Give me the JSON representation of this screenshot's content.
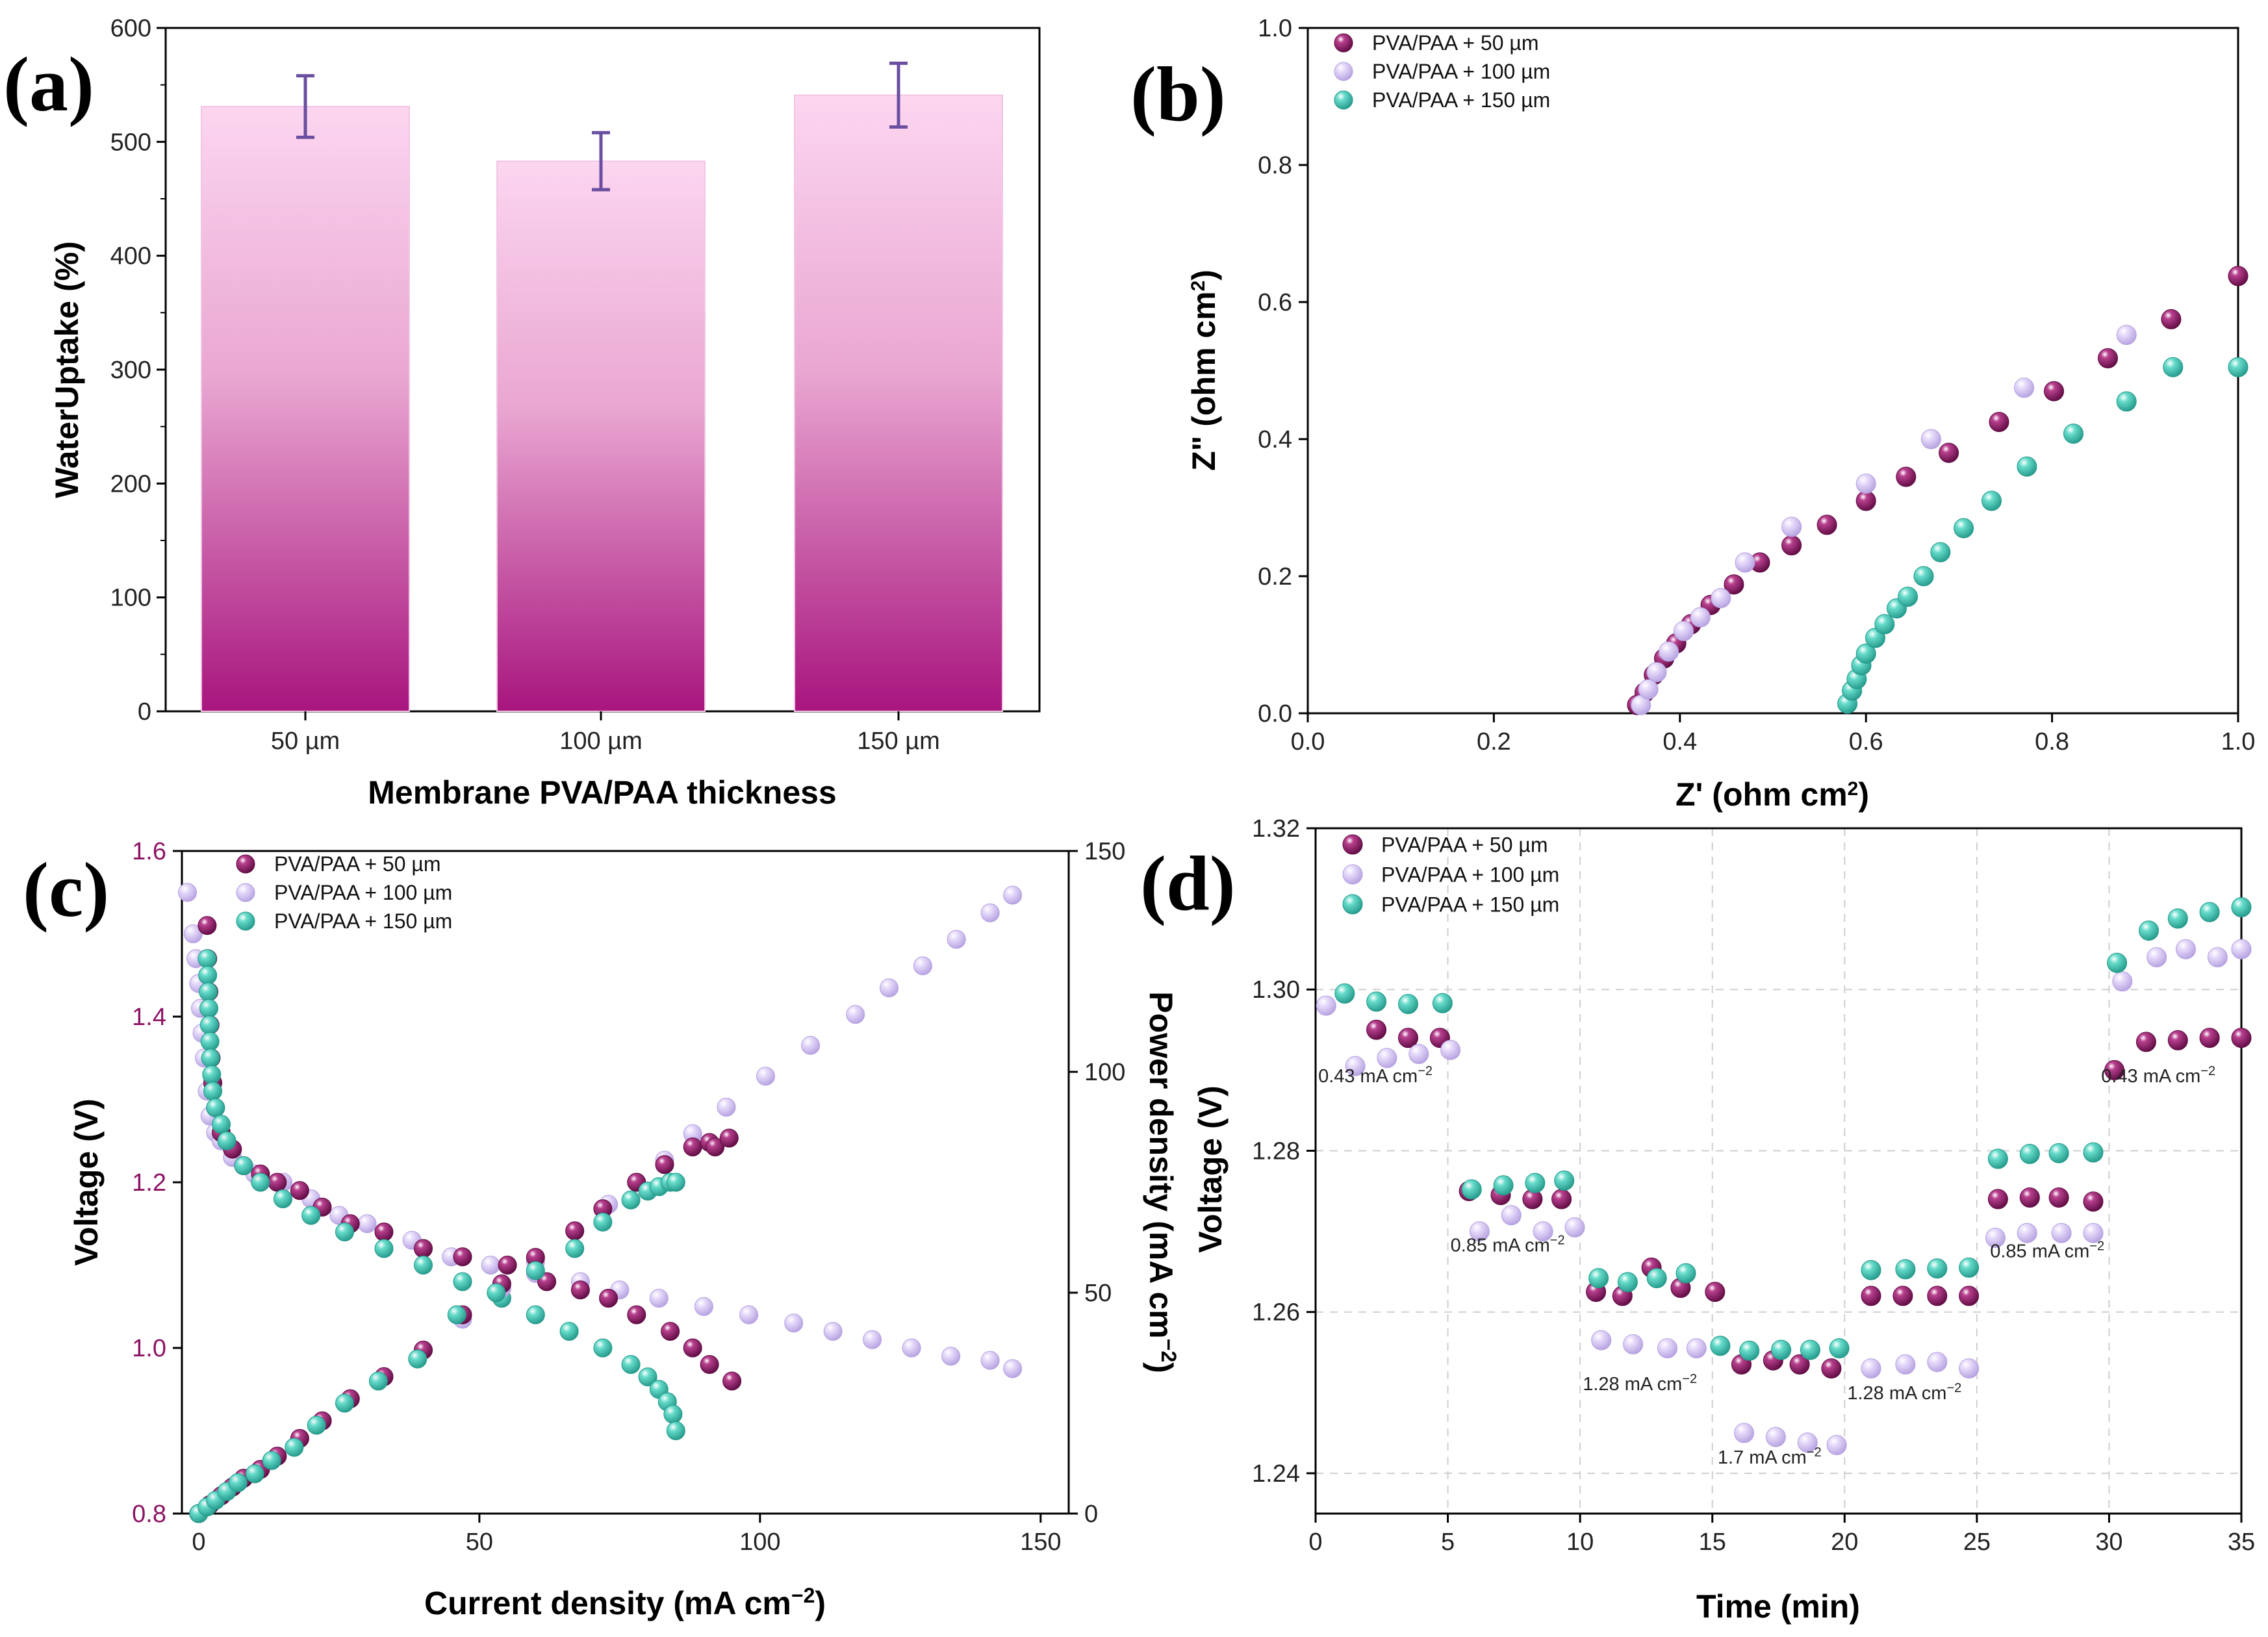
{
  "colors": {
    "s50": "#8c1464",
    "s100": "#d4c2f2",
    "s150": "#48c6b4",
    "bar_top": "#fcd6f0",
    "bar_bottom": "#a8157e",
    "error_bar": "#6a4ea0",
    "voltage_axis": "#8c1464"
  },
  "chart_data": [
    {
      "panel": "(a)",
      "type": "bar",
      "categories": [
        "50 µm",
        "100 µm",
        "150 µm"
      ],
      "values": [
        531,
        483,
        541
      ],
      "errors": [
        27,
        25,
        28
      ],
      "xlabel": "Membrane PVA/PAA thickness",
      "ylabel": "WaterUptake (%)",
      "ylim": [
        0,
        600
      ],
      "yticks": [
        "0",
        "100",
        "200",
        "300",
        "400",
        "500",
        "600"
      ]
    },
    {
      "panel": "(b)",
      "type": "scatter",
      "xlabel": "Z' (ohm cm",
      "xlabel_sup": "2",
      "xlabel_end": ")",
      "ylabel": "Z\" (ohm cm",
      "ylabel_sup": "2",
      "ylabel_end": ")",
      "xlim": [
        0,
        1
      ],
      "ylim": [
        0,
        1
      ],
      "xticks": [
        "0.0",
        "0.2",
        "0.4",
        "0.6",
        "0.8",
        "1.0"
      ],
      "yticks": [
        "0.0",
        "0.2",
        "0.4",
        "0.6",
        "0.8",
        "1.0"
      ],
      "legend": [
        "PVA/PAA + 50 µm",
        "PVA/PAA + 100 µm",
        "PVA/PAA + 150 µm"
      ],
      "series": [
        {
          "name": "PVA/PAA + 50 µm",
          "x": [
            0.354,
            0.362,
            0.372,
            0.383,
            0.396,
            0.412,
            0.433,
            0.458,
            0.486,
            0.52,
            0.558,
            0.6,
            0.643,
            0.689,
            0.743,
            0.802,
            0.86,
            0.928,
            1.0
          ],
          "y": [
            0.012,
            0.03,
            0.056,
            0.08,
            0.102,
            0.13,
            0.158,
            0.188,
            0.22,
            0.245,
            0.275,
            0.31,
            0.345,
            0.38,
            0.425,
            0.47,
            0.518,
            0.575,
            0.638
          ]
        },
        {
          "name": "PVA/PAA + 100 µm",
          "x": [
            0.358,
            0.366,
            0.375,
            0.388,
            0.404,
            0.422,
            0.444,
            0.47,
            0.52,
            0.6,
            0.67,
            0.77,
            0.88
          ],
          "y": [
            0.012,
            0.035,
            0.06,
            0.09,
            0.12,
            0.14,
            0.168,
            0.22,
            0.272,
            0.335,
            0.4,
            0.475,
            0.552
          ]
        },
        {
          "name": "PVA/PAA + 150 µm",
          "x": [
            0.58,
            0.585,
            0.59,
            0.595,
            0.6,
            0.61,
            0.62,
            0.633,
            0.645,
            0.662,
            0.68,
            0.705,
            0.735,
            0.773,
            0.823,
            0.88,
            0.93,
            1.0
          ],
          "y": [
            0.014,
            0.033,
            0.05,
            0.07,
            0.087,
            0.11,
            0.13,
            0.153,
            0.17,
            0.2,
            0.235,
            0.27,
            0.31,
            0.36,
            0.408,
            0.455,
            0.505,
            0.505
          ]
        }
      ]
    },
    {
      "panel": "(c)",
      "type": "scatter",
      "xlabel": "Current density (mA cm",
      "xlabel_sup": "−2",
      "xlabel_end": ")",
      "ylabel": "Voltage (V)",
      "y2label": "Power density (mA cm",
      "y2label_sup": "−2",
      "y2label_end": ")",
      "xlim": [
        -3,
        155
      ],
      "ylim": [
        0.8,
        1.6
      ],
      "y2lim": [
        0,
        150
      ],
      "xticks": [
        "0",
        "50",
        "100",
        "150"
      ],
      "yticks": [
        "0.8",
        "1.0",
        "1.2",
        "1.4",
        "1.6"
      ],
      "y2ticks": [
        "0",
        "50",
        "100",
        "150"
      ],
      "legend": [
        "PVA/PAA + 50 µm",
        "PVA/PAA + 100 µm",
        "PVA/PAA + 150 µm"
      ],
      "polarization": [
        {
          "name": "PVA/PAA + 50 µm",
          "x": [
            1.5,
            1.6,
            1.8,
            2,
            2.2,
            2.5,
            3,
            4,
            6,
            8,
            11,
            14,
            18,
            22,
            27,
            33,
            40,
            47,
            55,
            62,
            68,
            73,
            78,
            84,
            88,
            91,
            95
          ],
          "y": [
            1.51,
            1.47,
            1.43,
            1.39,
            1.35,
            1.32,
            1.29,
            1.26,
            1.24,
            1.22,
            1.21,
            1.2,
            1.19,
            1.17,
            1.15,
            1.14,
            1.12,
            1.11,
            1.1,
            1.08,
            1.07,
            1.06,
            1.04,
            1.02,
            1.0,
            0.98,
            0.96
          ]
        },
        {
          "name": "PVA/PAA + 100 µm",
          "x": [
            -2,
            -1,
            -0.5,
            0,
            0.3,
            0.6,
            1,
            1.5,
            2,
            3,
            4,
            6,
            10,
            15,
            20,
            25,
            30,
            38,
            45,
            52,
            60,
            68,
            75,
            82,
            90,
            98,
            106,
            113,
            120,
            127,
            134,
            141,
            145
          ],
          "y": [
            1.55,
            1.5,
            1.47,
            1.44,
            1.41,
            1.38,
            1.35,
            1.31,
            1.28,
            1.26,
            1.25,
            1.23,
            1.21,
            1.2,
            1.18,
            1.16,
            1.15,
            1.13,
            1.11,
            1.1,
            1.09,
            1.08,
            1.07,
            1.06,
            1.05,
            1.04,
            1.03,
            1.02,
            1.01,
            1.0,
            0.99,
            0.985,
            0.975
          ]
        },
        {
          "name": "PVA/PAA + 150 µm",
          "x": [
            1.5,
            1.6,
            1.7,
            1.8,
            1.9,
            2,
            2.1,
            2.3,
            2.5,
            3,
            4,
            5,
            8,
            11,
            15,
            20,
            26,
            33,
            40,
            47,
            54,
            60,
            66,
            72,
            77,
            80,
            82,
            83.5,
            84.5,
            85
          ],
          "y": [
            1.47,
            1.45,
            1.43,
            1.41,
            1.39,
            1.37,
            1.35,
            1.33,
            1.31,
            1.29,
            1.27,
            1.25,
            1.22,
            1.2,
            1.18,
            1.16,
            1.14,
            1.12,
            1.1,
            1.08,
            1.06,
            1.04,
            1.02,
            1.0,
            0.98,
            0.965,
            0.95,
            0.935,
            0.92,
            0.9
          ]
        }
      ],
      "power": [
        {
          "name": "PVA/PAA + 50 µm",
          "x": [
            0,
            2,
            4,
            6,
            8,
            11,
            14,
            18,
            22,
            27,
            33,
            40,
            47,
            54,
            60,
            67,
            72,
            78,
            83,
            88,
            91,
            92,
            94.5
          ],
          "y": [
            0,
            2,
            4,
            6,
            8,
            10,
            13,
            17,
            21,
            26,
            31,
            37,
            45,
            52,
            58,
            64,
            69,
            75,
            79,
            83,
            84,
            83,
            85
          ]
        },
        {
          "name": "PVA/PAA + 100 µm",
          "x": [
            0,
            2,
            4,
            6,
            8,
            11,
            14,
            18,
            22,
            27,
            33,
            40,
            47,
            54,
            60,
            67,
            73,
            78,
            83,
            88,
            94,
            101,
            109,
            117,
            123,
            129,
            135,
            141,
            145
          ],
          "y": [
            0,
            2,
            4,
            6,
            8,
            10,
            13,
            17,
            21,
            26,
            31,
            37,
            44,
            51,
            57,
            64,
            70,
            75,
            80,
            86,
            92,
            99,
            106,
            113,
            119,
            124,
            130,
            136,
            140
          ]
        },
        {
          "name": "PVA/PAA + 150 µm",
          "x": [
            0,
            1.5,
            3,
            5,
            7,
            10,
            13,
            17,
            21,
            26,
            32,
            39,
            46,
            53,
            60,
            67,
            72,
            77,
            80,
            82,
            84,
            85
          ],
          "y": [
            0,
            1.5,
            3,
            5,
            7,
            9,
            12,
            15,
            20,
            25,
            30,
            35,
            45,
            50,
            55,
            60,
            66,
            71,
            73,
            74,
            75,
            75
          ]
        }
      ]
    },
    {
      "panel": "(d)",
      "type": "scatter",
      "xlabel": "Time (min)",
      "ylabel": "Voltage (V)",
      "xlim": [
        0,
        35
      ],
      "ylim": [
        1.235,
        1.32
      ],
      "xticks": [
        "0",
        "5",
        "10",
        "15",
        "20",
        "25",
        "30",
        "35"
      ],
      "yticks": [
        "1.24",
        "1.26",
        "1.28",
        "1.30",
        "1.32"
      ],
      "grid": true,
      "legend": [
        "PVA/PAA + 50 µm",
        "PVA/PAA + 100 µm",
        "PVA/PAA + 150 µm"
      ],
      "series": [
        {
          "name": "PVA/PAA + 50 µm",
          "x": [
            2.3,
            3.5,
            4.7,
            5.8,
            7,
            8.2,
            9.3,
            10.6,
            11.6,
            12.7,
            13.8,
            15.1,
            16.1,
            17.3,
            18.3,
            19.5,
            21,
            22.2,
            23.5,
            24.7,
            25.8,
            27,
            28.1,
            29.4,
            30.2,
            31.4,
            32.6,
            33.8,
            35
          ],
          "y": [
            1.295,
            1.294,
            1.294,
            1.275,
            1.2745,
            1.274,
            1.274,
            1.2625,
            1.262,
            1.2655,
            1.263,
            1.2625,
            1.2535,
            1.254,
            1.2535,
            1.253,
            1.262,
            1.262,
            1.262,
            1.262,
            1.274,
            1.2742,
            1.2742,
            1.2737,
            1.29,
            1.2935,
            1.2937,
            1.294,
            1.294
          ]
        },
        {
          "name": "PVA/PAA + 100 µm",
          "x": [
            0.4,
            1.5,
            2.7,
            3.9,
            5.1,
            6.2,
            7.4,
            8.6,
            9.8,
            10.8,
            12,
            13.3,
            14.4,
            16.2,
            17.4,
            18.6,
            19.7,
            21,
            22.3,
            23.5,
            24.7,
            25.7,
            26.9,
            28.2,
            29.4,
            30.5,
            31.8,
            32.9,
            34.1,
            35
          ],
          "y": [
            1.298,
            1.2905,
            1.2915,
            1.292,
            1.2925,
            1.27,
            1.272,
            1.27,
            1.2705,
            1.2565,
            1.256,
            1.2555,
            1.2555,
            1.245,
            1.2445,
            1.2438,
            1.2435,
            1.253,
            1.2535,
            1.2538,
            1.253,
            1.2692,
            1.2698,
            1.2698,
            1.2698,
            1.301,
            1.304,
            1.305,
            1.304,
            1.305
          ]
        },
        {
          "name": "PVA/PAA + 150 µm",
          "x": [
            1.1,
            2.3,
            3.5,
            4.8,
            5.9,
            7.1,
            8.3,
            9.4,
            10.7,
            11.8,
            12.9,
            14,
            15.3,
            16.4,
            17.6,
            18.7,
            19.8,
            21,
            22.3,
            23.5,
            24.7,
            25.8,
            27,
            28.1,
            29.4,
            30.3,
            31.5,
            32.6,
            33.8,
            35
          ],
          "y": [
            1.2995,
            1.2985,
            1.2982,
            1.2983,
            1.2752,
            1.2757,
            1.276,
            1.2763,
            1.2642,
            1.2637,
            1.2642,
            1.2648,
            1.2558,
            1.2552,
            1.2553,
            1.2553,
            1.2555,
            1.2652,
            1.2653,
            1.2654,
            1.2655,
            1.279,
            1.2796,
            1.2797,
            1.2798,
            1.3033,
            1.3073,
            1.3088,
            1.3096,
            1.3102
          ]
        }
      ],
      "annotations": [
        {
          "text": "0.43 mA cm",
          "sup": "−2",
          "x": 0.1,
          "y": 1.2885
        },
        {
          "text": "0.85 mA cm",
          "sup": "−2",
          "x": 5.1,
          "y": 1.2675
        },
        {
          "text": "1.28 mA cm",
          "sup": "−2",
          "x": 10.1,
          "y": 1.2503
        },
        {
          "text": "1.7 mA cm",
          "sup": "−2",
          "x": 15.2,
          "y": 1.2412
        },
        {
          "text": "1.28 mA cm",
          "sup": "−2",
          "x": 20.1,
          "y": 1.2492
        },
        {
          "text": "0.85 mA cm",
          "sup": "−2",
          "x": 25.5,
          "y": 1.2668
        },
        {
          "text": "0.43 mA cm",
          "sup": "−2",
          "x": 29.7,
          "y": 1.2885
        }
      ]
    }
  ]
}
